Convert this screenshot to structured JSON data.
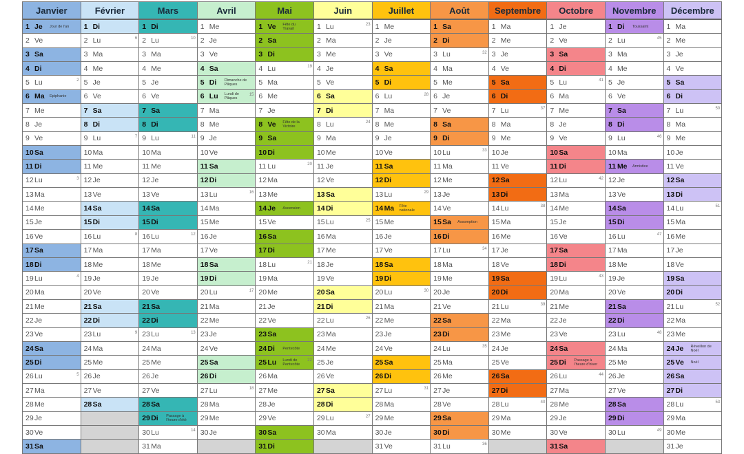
{
  "weekday_labels": [
    "Lu",
    "Ma",
    "Me",
    "Je",
    "Ve",
    "Sa",
    "Di"
  ],
  "months": [
    {
      "name": "Janvier",
      "color": "#8db4e2",
      "days": 31,
      "first_weekday": 3,
      "week_numbers": [
        2,
        3,
        4,
        5
      ],
      "holidays": {
        "1": "Jour de l'an",
        "6": "Epiphanie"
      }
    },
    {
      "name": "Février",
      "color": "#c9e3f6",
      "days": 28,
      "first_weekday": 6,
      "week_numbers": [
        6,
        7,
        8,
        9
      ],
      "holidays": {}
    },
    {
      "name": "Mars",
      "color": "#35b6b4",
      "days": 31,
      "first_weekday": 6,
      "week_numbers": [
        10,
        11,
        12,
        13,
        14
      ],
      "holidays": {
        "29": "Passage à l'heure d'été"
      }
    },
    {
      "name": "Avril",
      "color": "#c6efce",
      "days": 30,
      "first_weekday": 2,
      "week_numbers": [
        15,
        16,
        17,
        18
      ],
      "holidays": {
        "5": "Dimanche de Pâques",
        "6": "Lundi de Pâques"
      }
    },
    {
      "name": "Mai",
      "color": "#8dc21f",
      "days": 31,
      "first_weekday": 4,
      "week_numbers": [
        19,
        20,
        21,
        22
      ],
      "holidays": {
        "1": "Fête du Travail",
        "8": "Fête de la Victoire",
        "14": "Ascension",
        "24": "Pentecôte",
        "25": "Lundi de Pentecôte"
      }
    },
    {
      "name": "Juin",
      "color": "#ffff99",
      "days": 30,
      "first_weekday": 0,
      "week_numbers": [
        23,
        24,
        25,
        26,
        27
      ],
      "holidays": {}
    },
    {
      "name": "Juillet",
      "color": "#ffc20e",
      "days": 31,
      "first_weekday": 2,
      "week_numbers": [
        28,
        29,
        30,
        31
      ],
      "holidays": {
        "14": "Fête nationale"
      }
    },
    {
      "name": "Août",
      "color": "#f79646",
      "days": 31,
      "first_weekday": 5,
      "week_numbers": [
        32,
        33,
        34,
        35,
        36
      ],
      "holidays": {
        "15": "Assomption"
      }
    },
    {
      "name": "Septembre",
      "color": "#f26c14",
      "days": 30,
      "first_weekday": 1,
      "week_numbers": [
        37,
        38,
        39,
        40
      ],
      "holidays": {}
    },
    {
      "name": "Octobre",
      "color": "#f4858a",
      "days": 31,
      "first_weekday": 3,
      "week_numbers": [
        41,
        42,
        43,
        44
      ],
      "holidays": {
        "25": "Passage à l'heure d'hiver"
      }
    },
    {
      "name": "Novembre",
      "color": "#b98de8",
      "days": 30,
      "first_weekday": 6,
      "week_numbers": [
        45,
        46,
        47,
        48,
        49
      ],
      "holidays": {
        "1": "Toussaint",
        "11": "Armistice"
      }
    },
    {
      "name": "Décembre",
      "color": "#cdc2f5",
      "days": 31,
      "first_weekday": 1,
      "week_numbers": [
        50,
        51,
        52,
        53
      ],
      "holidays": {
        "24": "Réveillon de Noël",
        "25": "Noël"
      }
    }
  ]
}
